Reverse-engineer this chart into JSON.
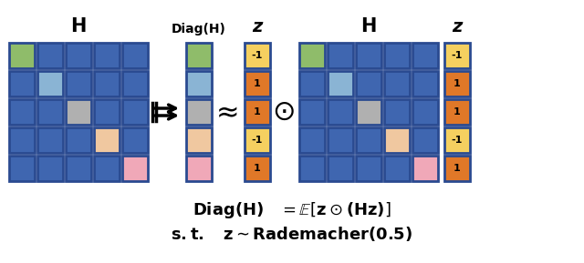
{
  "blue": "#3f66b0",
  "green": "#8fbc6a",
  "light_blue": "#8ab4d4",
  "gray": "#b0b0b0",
  "peach": "#f0c8a0",
  "pink": "#f0a8b8",
  "yellow": "#f5d060",
  "orange": "#e07828",
  "border": "#2a4a90",
  "H_diag_colors": [
    "#8fbc6a",
    "#8ab4d4",
    "#b0b0b0",
    "#f0c8a0",
    "#f0a8b8"
  ],
  "z_values": [
    "-1",
    "1",
    "1",
    "-1",
    "1"
  ],
  "z_colors": [
    "#f5d060",
    "#e07828",
    "#e07828",
    "#f5d060",
    "#e07828"
  ],
  "H_grid": [
    [
      "#8fbc6a",
      "#3f66b0",
      "#3f66b0",
      "#3f66b0",
      "#3f66b0"
    ],
    [
      "#3f66b0",
      "#8ab4d4",
      "#3f66b0",
      "#3f66b0",
      "#3f66b0"
    ],
    [
      "#3f66b0",
      "#3f66b0",
      "#b0b0b0",
      "#3f66b0",
      "#3f66b0"
    ],
    [
      "#3f66b0",
      "#3f66b0",
      "#3f66b0",
      "#f0c8a0",
      "#3f66b0"
    ],
    [
      "#3f66b0",
      "#3f66b0",
      "#3f66b0",
      "#3f66b0",
      "#f0a8b8"
    ]
  ]
}
